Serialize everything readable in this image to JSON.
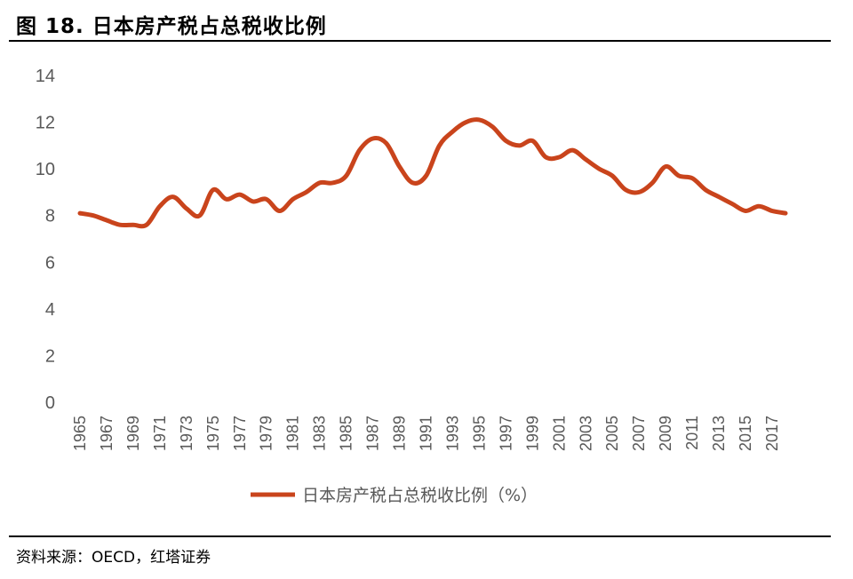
{
  "figure": {
    "title": "图 18. 日本房产税占总税收比例",
    "source": "资料来源：OECD，红塔证券"
  },
  "chart_data": {
    "type": "line",
    "title": "图 18. 日本房产税占总税收比例",
    "xlabel": "",
    "ylabel": "",
    "ylim": [
      0,
      14
    ],
    "yticks": [
      0,
      2,
      4,
      6,
      8,
      10,
      12,
      14
    ],
    "x": [
      1965,
      1966,
      1967,
      1968,
      1969,
      1970,
      1971,
      1972,
      1973,
      1974,
      1975,
      1976,
      1977,
      1978,
      1979,
      1980,
      1981,
      1982,
      1983,
      1984,
      1985,
      1986,
      1987,
      1988,
      1989,
      1990,
      1991,
      1992,
      1993,
      1994,
      1995,
      1996,
      1997,
      1998,
      1999,
      2000,
      2001,
      2002,
      2003,
      2004,
      2005,
      2006,
      2007,
      2008,
      2009,
      2010,
      2011,
      2012,
      2013,
      2014,
      2015,
      2016,
      2017,
      2018
    ],
    "xticks": [
      "1965",
      "1967",
      "1969",
      "1971",
      "1973",
      "1975",
      "1977",
      "1979",
      "1981",
      "1983",
      "1985",
      "1987",
      "1989",
      "1991",
      "1993",
      "1995",
      "1997",
      "1999",
      "2001",
      "2003",
      "2005",
      "2007",
      "2009",
      "2011",
      "2013",
      "2015",
      "2017"
    ],
    "series": [
      {
        "name": "日本房产税占总税收比例（%）",
        "color": "#C9441C",
        "values": [
          8.1,
          8.0,
          7.8,
          7.6,
          7.6,
          7.6,
          8.4,
          8.8,
          8.3,
          8.0,
          9.1,
          8.7,
          8.9,
          8.6,
          8.7,
          8.2,
          8.7,
          9.0,
          9.4,
          9.4,
          9.7,
          10.8,
          11.3,
          11.1,
          10.1,
          9.4,
          9.7,
          11.0,
          11.6,
          12.0,
          12.1,
          11.8,
          11.2,
          11.0,
          11.2,
          10.5,
          10.5,
          10.8,
          10.4,
          10.0,
          9.7,
          9.1,
          9.0,
          9.4,
          10.1,
          9.7,
          9.6,
          9.1,
          8.8,
          8.5,
          8.2,
          8.4,
          8.2,
          8.1
        ]
      }
    ],
    "grid": false,
    "legend_position": "bottom-center"
  }
}
